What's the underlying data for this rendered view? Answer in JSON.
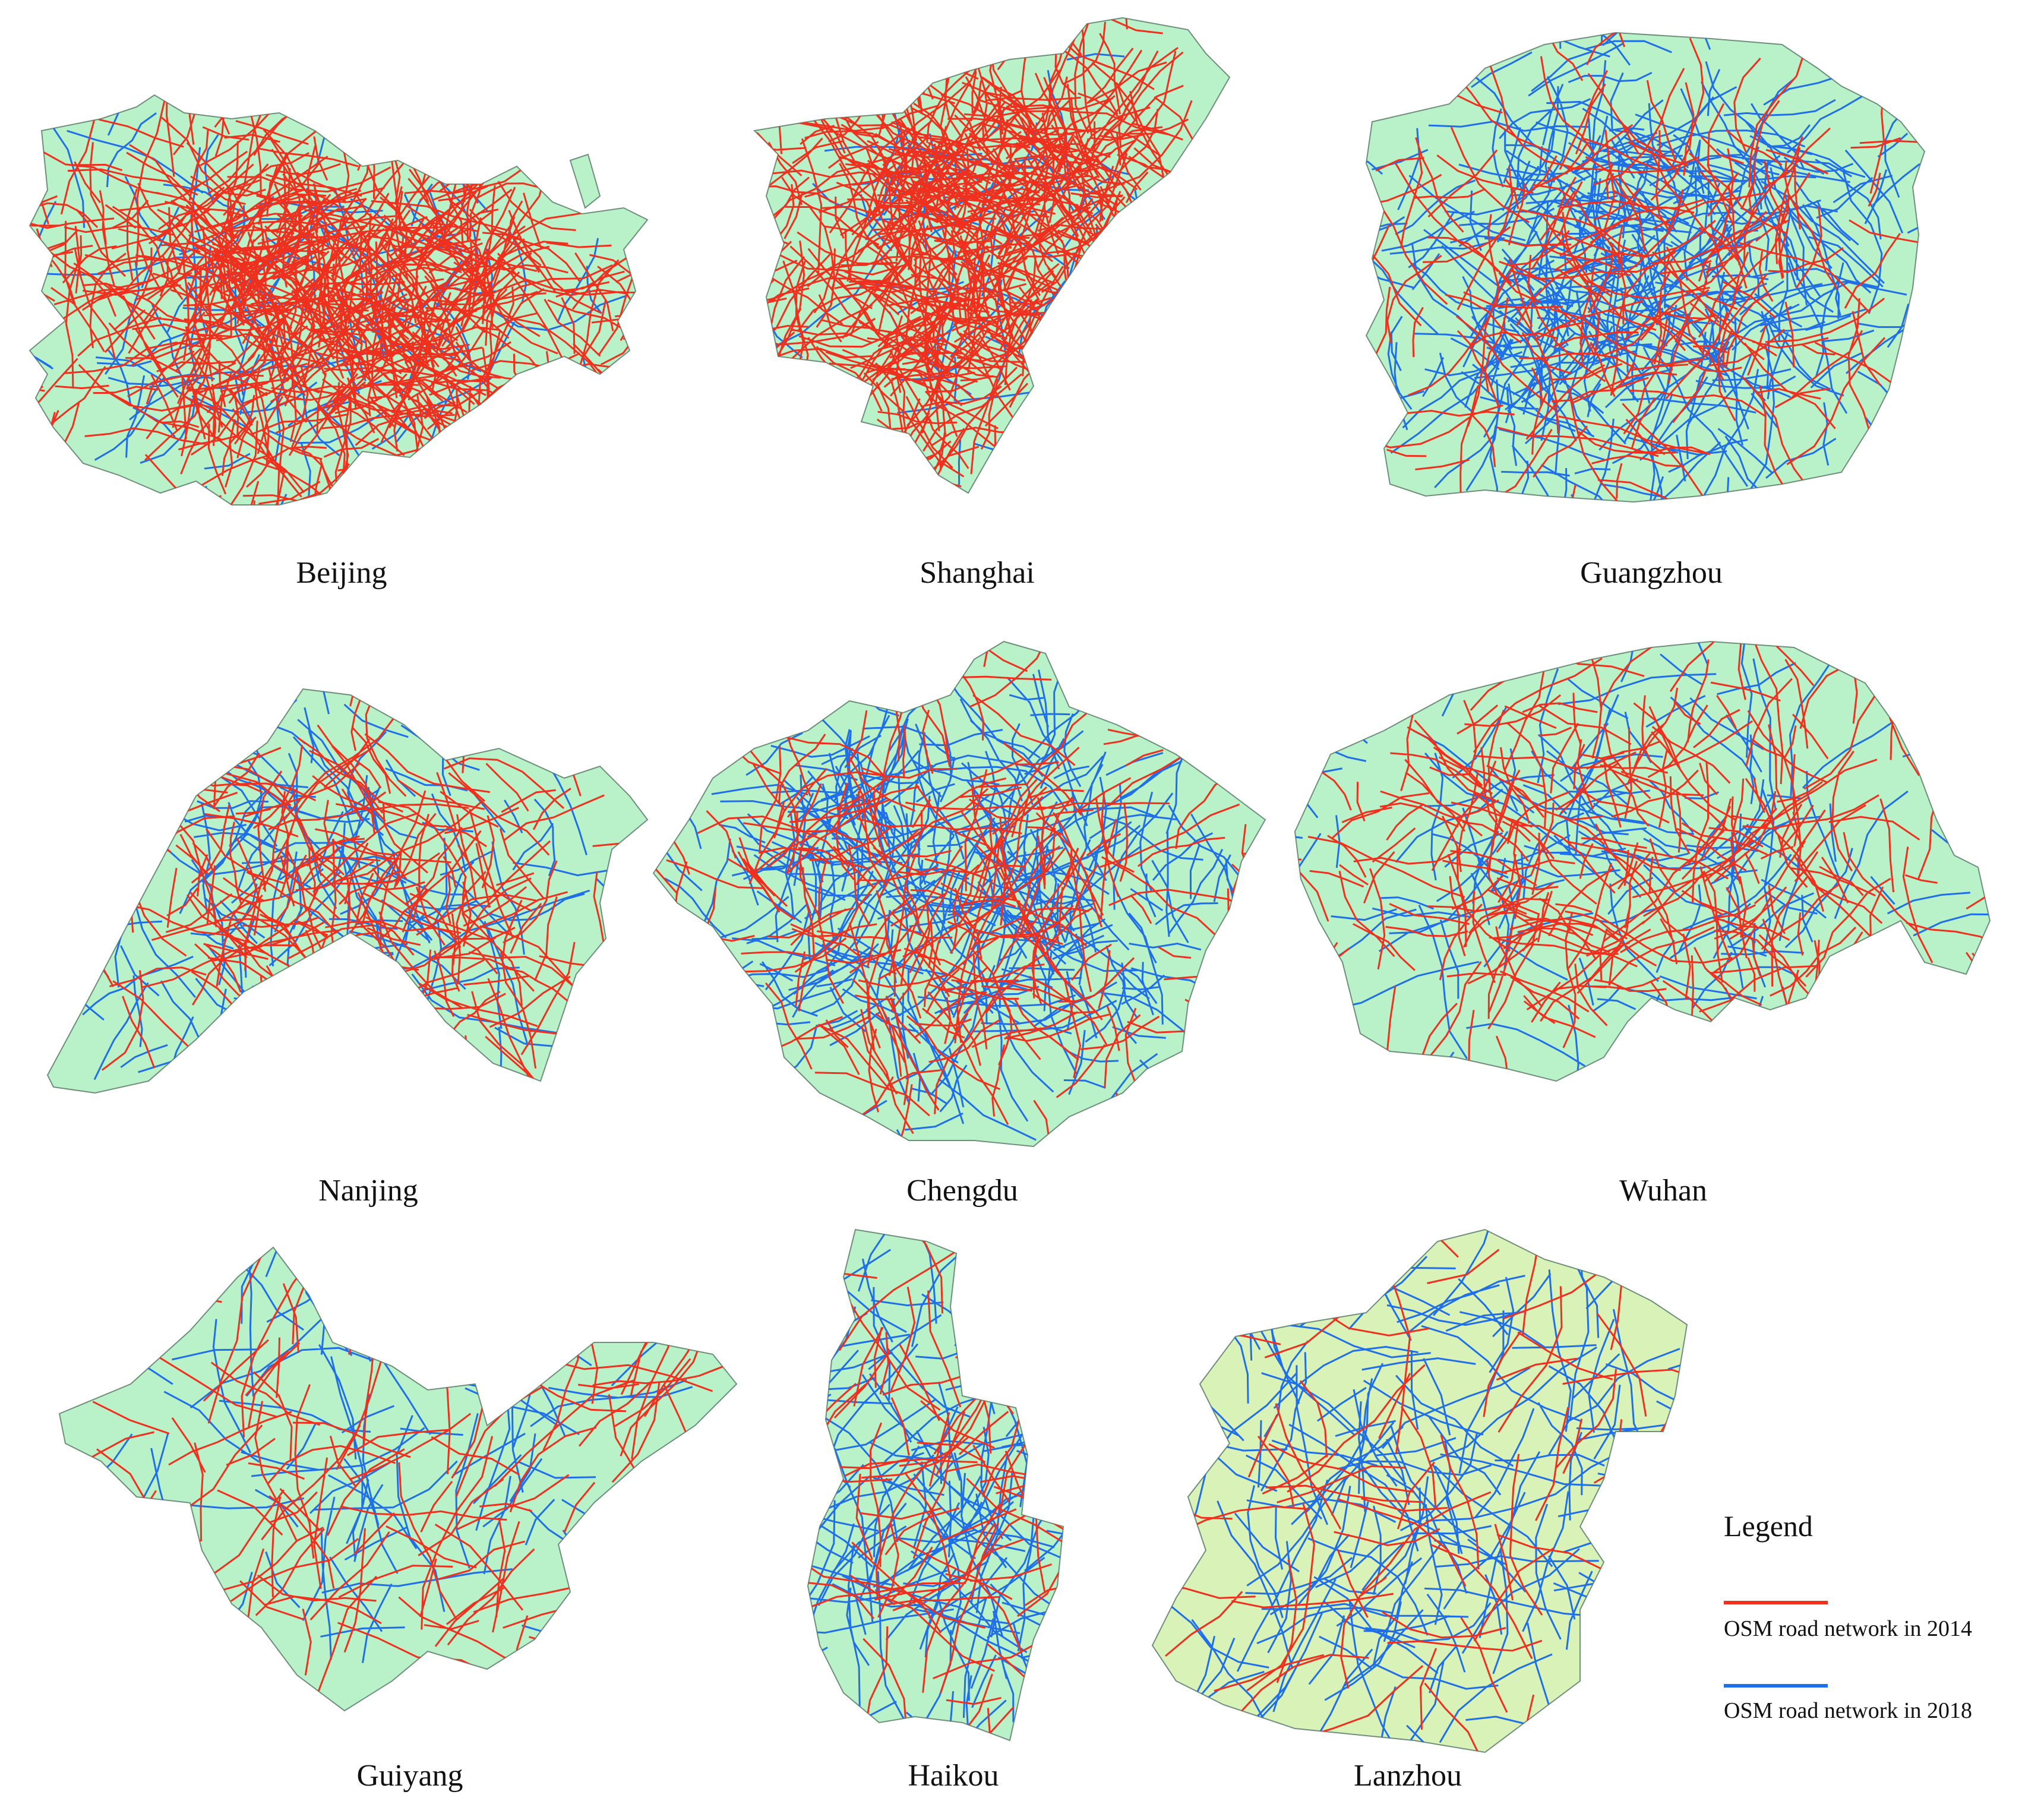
{
  "colors": {
    "road_2014": "#f0301e",
    "road_2018": "#1f6fe8",
    "land_default": "#b9f2c8",
    "land_lanzhou": "#d9f2b8",
    "boundary": "#6f8f7c"
  },
  "cities": [
    {
      "id": "beijing",
      "name": "Beijing",
      "red_share": 0.86,
      "density": "very-high"
    },
    {
      "id": "shanghai",
      "name": "Shanghai",
      "red_share": 0.92,
      "density": "very-high"
    },
    {
      "id": "guangzhou",
      "name": "Guangzhou",
      "red_share": 0.35,
      "density": "high"
    },
    {
      "id": "nanjing",
      "name": "Nanjing",
      "red_share": 0.62,
      "density": "medium"
    },
    {
      "id": "chengdu",
      "name": "Chengdu",
      "red_share": 0.42,
      "density": "high"
    },
    {
      "id": "wuhan",
      "name": "Wuhan",
      "red_share": 0.65,
      "density": "medium"
    },
    {
      "id": "guiyang",
      "name": "Guiyang",
      "red_share": 0.55,
      "density": "low"
    },
    {
      "id": "haikou",
      "name": "Haikou",
      "red_share": 0.4,
      "density": "low"
    },
    {
      "id": "lanzhou",
      "name": "Lanzhou",
      "red_share": 0.3,
      "density": "low"
    }
  ],
  "legend": {
    "title": "Legend",
    "items": [
      {
        "label": "OSM road network in 2014",
        "color_key": "road_2014"
      },
      {
        "label": "OSM road network in 2018",
        "color_key": "road_2018"
      }
    ]
  }
}
